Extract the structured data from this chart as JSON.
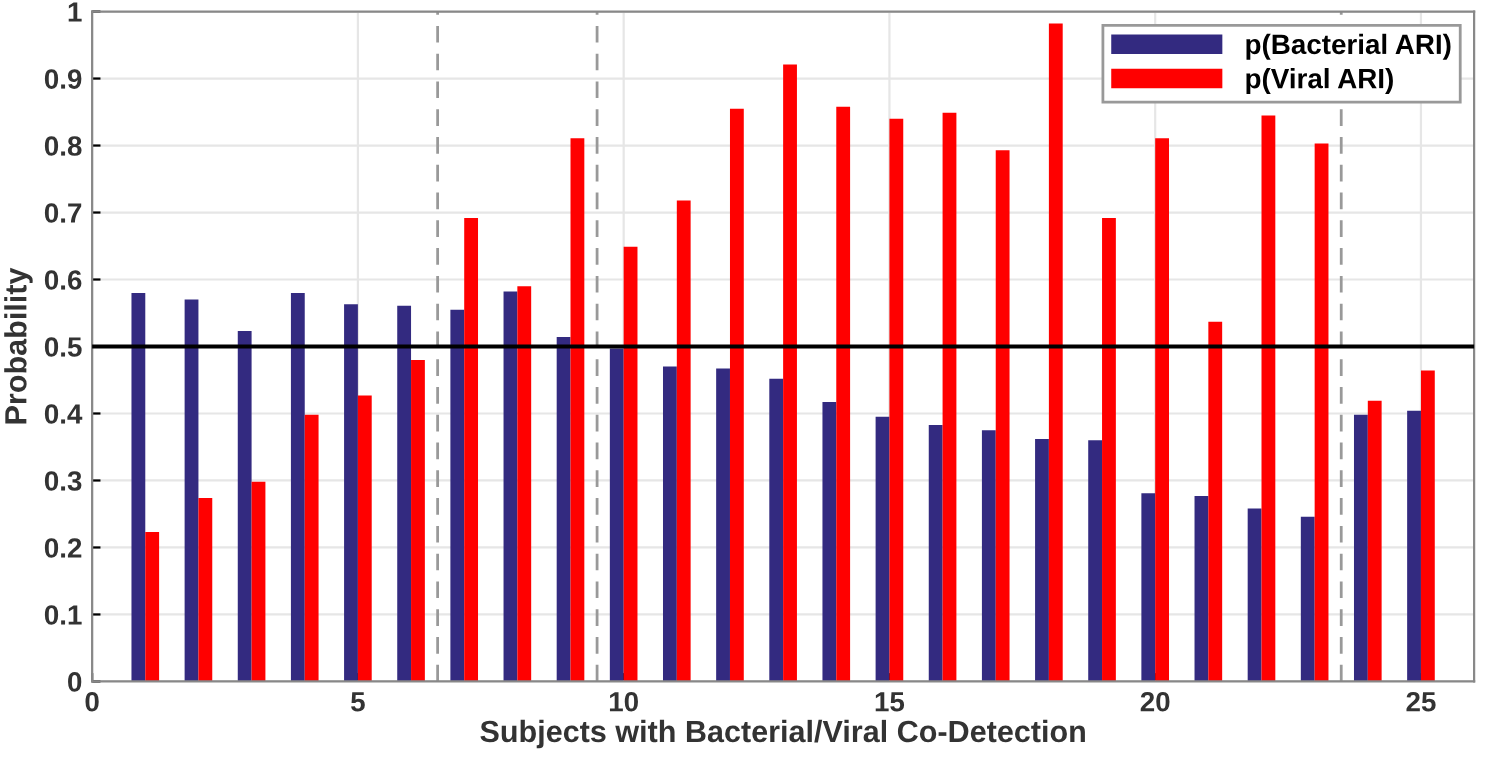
{
  "chart_data": {
    "type": "bar",
    "xlabel": "Subjects with Bacterial/Viral Co-Detection",
    "ylabel": "Probability",
    "x": [
      1,
      2,
      3,
      4,
      5,
      6,
      7,
      8,
      9,
      10,
      11,
      12,
      13,
      14,
      15,
      16,
      17,
      18,
      19,
      20,
      21,
      22,
      23,
      24,
      25
    ],
    "series": [
      {
        "name": "p(Bacterial ARI)",
        "color": "#332a80",
        "values": [
          0.58,
          0.57,
          0.523,
          0.58,
          0.563,
          0.561,
          0.555,
          0.582,
          0.514,
          0.497,
          0.47,
          0.467,
          0.452,
          0.417,
          0.395,
          0.383,
          0.375,
          0.362,
          0.36,
          0.281,
          0.277,
          0.258,
          0.246,
          0.398,
          0.404
        ]
      },
      {
        "name": "p(Viral ARI)",
        "color": "#ff0000",
        "values": [
          0.223,
          0.274,
          0.298,
          0.398,
          0.427,
          0.48,
          0.692,
          0.59,
          0.811,
          0.649,
          0.718,
          0.855,
          0.921,
          0.858,
          0.84,
          0.849,
          0.793,
          0.982,
          0.692,
          0.811,
          0.537,
          0.845,
          0.803,
          0.419,
          0.464
        ]
      }
    ],
    "xlim": [
      0,
      26
    ],
    "xticks": [
      0,
      5,
      10,
      15,
      20,
      25
    ],
    "ylim": [
      0,
      1
    ],
    "yticks": [
      0,
      0.1,
      0.2,
      0.3,
      0.4,
      0.5,
      0.6,
      0.7,
      0.8,
      0.9,
      1
    ],
    "ref_lines": [
      {
        "axis": "y",
        "value": 0.5,
        "color": "#000000",
        "line_style": "solid"
      },
      {
        "axis": "x",
        "value": 6.5,
        "color": "#999999",
        "line_style": "dashed"
      },
      {
        "axis": "x",
        "value": 9.5,
        "color": "#999999",
        "line_style": "dashed"
      },
      {
        "axis": "x",
        "value": 23.5,
        "color": "#999999",
        "line_style": "dashed"
      }
    ],
    "grid": true,
    "legend": "top right"
  }
}
